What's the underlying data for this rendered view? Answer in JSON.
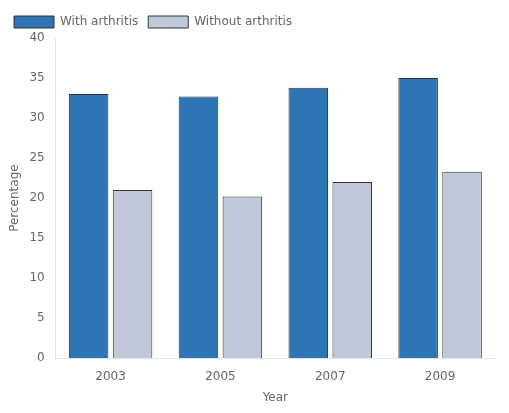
{
  "chart_data": {
    "type": "bar",
    "categories": [
      "2003",
      "2005",
      "2007",
      "2009"
    ],
    "series": [
      {
        "name": "With arthritis",
        "color": "#2E75B6",
        "values": [
          33.0,
          32.7,
          33.8,
          35.0
        ]
      },
      {
        "name": "Without arthritis",
        "color": "#BFC9D9",
        "values": [
          21.0,
          20.2,
          22.0,
          23.3
        ]
      }
    ],
    "xlabel": "Year",
    "ylabel": "Percentage",
    "ylim": [
      0,
      40
    ],
    "yticks": [
      0,
      5,
      10,
      15,
      20,
      25,
      30,
      35,
      40
    ],
    "grid": false,
    "legend": "upper left"
  }
}
